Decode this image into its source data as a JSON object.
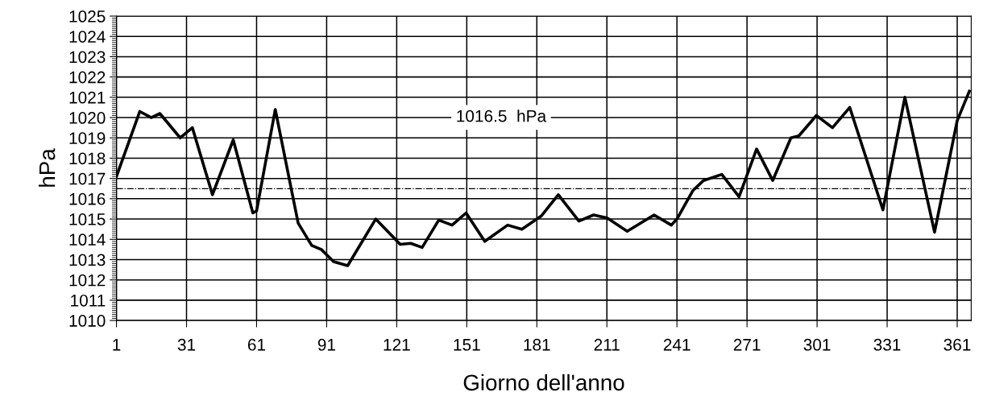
{
  "chart_data": {
    "type": "line",
    "xlabel": "Giorno dell'anno",
    "ylabel": "hPa",
    "x": [
      1,
      11,
      15.9,
      19.6,
      28.3,
      33.5,
      42.1,
      51,
      59.4,
      61,
      69,
      78.8,
      84.6,
      88.7,
      94,
      100,
      112,
      122.5,
      127,
      131.9,
      139,
      144.7,
      150.7,
      158.7,
      168.5,
      174.6,
      182.9,
      190.2,
      199,
      205.3,
      211.1,
      219.7,
      231.2,
      238.6,
      241,
      247.8,
      252.4,
      260.2,
      267.6,
      275.1,
      282,
      289.8,
      293.2,
      300.7,
      307.6,
      315,
      329.2,
      338.6,
      351.3,
      361,
      366.2
    ],
    "series": [
      {
        "color": "#000000",
        "values": [
          1017.1,
          1020.3,
          1020.0,
          1020.2,
          1019.0,
          1019.5,
          1016.2,
          1018.9,
          1015.3,
          1015.4,
          1020.4,
          1014.8,
          1013.7,
          1013.5,
          1012.9,
          1012.7,
          1015.0,
          1013.75,
          1013.8,
          1013.6,
          1014.95,
          1014.7,
          1015.3,
          1013.9,
          1014.7,
          1014.5,
          1015.15,
          1016.2,
          1014.9,
          1015.2,
          1015.05,
          1014.4,
          1015.2,
          1014.7,
          1015.0,
          1016.4,
          1016.9,
          1017.2,
          1016.1,
          1018.45,
          1016.9,
          1019.0,
          1019.1,
          1020.1,
          1019.5,
          1020.5,
          1015.45,
          1021.0,
          1014.35,
          1019.85,
          1021.3
        ]
      }
    ],
    "xlim": [
      1,
      367
    ],
    "xticks": [
      1,
      31,
      61,
      91,
      121,
      151,
      181,
      211,
      241,
      271,
      301,
      331,
      361
    ],
    "ylim": [
      1010,
      1025
    ],
    "yticks": [
      1010,
      1011,
      1012,
      1013,
      1014,
      1015,
      1016,
      1017,
      1018,
      1019,
      1020,
      1021,
      1022,
      1023,
      1024,
      1025
    ],
    "ref_lines": [
      {
        "axis": "y",
        "value": 1016.5,
        "label": "1016.5  hPa",
        "color": "#000000",
        "line_style": "dashdot"
      }
    ],
    "grid": true,
    "legend": false,
    "marker": "none",
    "line_style": "solid"
  }
}
